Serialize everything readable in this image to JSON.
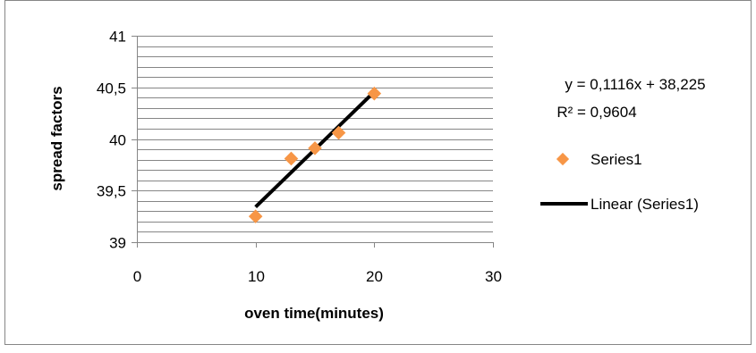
{
  "chart_data": {
    "type": "scatter",
    "title": "",
    "xlabel": "oven time(minutes)",
    "ylabel": "spread factors",
    "xlim": [
      0,
      30
    ],
    "ylim": [
      39,
      41
    ],
    "x_ticks": [
      0,
      10,
      20,
      30
    ],
    "x_tick_labels": [
      "0",
      "10",
      "20",
      "30"
    ],
    "y_major_ticks": [
      39,
      39.5,
      40,
      40.5,
      41
    ],
    "y_tick_labels": [
      "39",
      "39,5",
      "40",
      "40,5",
      "41"
    ],
    "y_minor_step": 0.1,
    "grid": "horizontal",
    "legend_position": "right",
    "series": [
      {
        "name": "Series1",
        "marker": "diamond",
        "color": "#F79646",
        "x": [
          10,
          13,
          15,
          17,
          20
        ],
        "y": [
          39.25,
          39.81,
          39.91,
          40.06,
          40.44
        ]
      }
    ],
    "trendline": {
      "name": "Linear (Series1)",
      "type": "linear",
      "slope": 0.1116,
      "intercept": 38.225,
      "x_range": [
        10,
        20
      ],
      "color": "#000000",
      "equation": "y = 0,1116x + 38,225",
      "r_squared": "R² = 0,9604"
    },
    "legend": [
      {
        "label": "Series1",
        "symbol": "diamond",
        "color": "#F79646"
      },
      {
        "label": "Linear (Series1)",
        "symbol": "line",
        "color": "#000000"
      }
    ]
  }
}
